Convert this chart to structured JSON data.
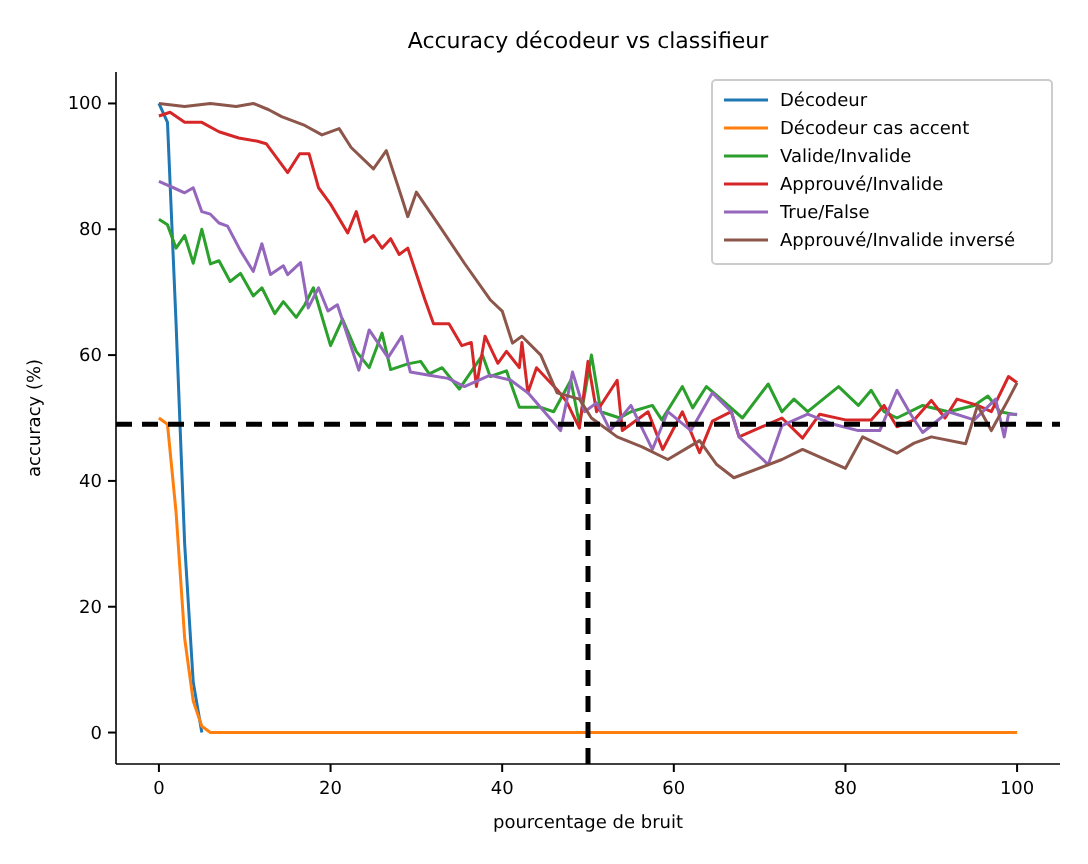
{
  "chart_data": {
    "type": "line",
    "title": "Accuracy décodeur vs classifieur",
    "xlabel": "pourcentage de bruit",
    "ylabel": "accuracy (%)",
    "xlim": [
      -5,
      105
    ],
    "ylim": [
      -5,
      105
    ],
    "xticks": [
      0,
      20,
      40,
      60,
      80,
      100
    ],
    "yticks": [
      0,
      20,
      40,
      60,
      80,
      100
    ],
    "grid": false,
    "legend": "top right",
    "marker": "none",
    "line_style": "solid",
    "series": [
      {
        "name": "Décodeur",
        "color": "#1f77b4",
        "x": [
          0,
          1,
          2,
          3,
          4,
          5
        ],
        "values": [
          100,
          97,
          65,
          30,
          8,
          0
        ]
      },
      {
        "name": "Décodeur cas accent",
        "color": "#ff7f0e",
        "x": [
          0,
          1,
          2,
          3,
          4,
          5,
          6,
          100
        ],
        "values": [
          50,
          49,
          35,
          15,
          5,
          1,
          0,
          0
        ]
      },
      {
        "name": "Valide/Invalide",
        "color": "#2ca02c",
        "x": [
          0,
          1,
          2,
          3,
          4,
          5,
          6,
          7,
          8.3,
          9.5,
          11,
          12,
          13.5,
          14.5,
          16,
          17,
          18,
          20,
          21.4,
          23,
          24.5,
          26,
          27,
          29,
          30.5,
          31.5,
          33,
          35,
          37.7,
          38.6,
          40.5,
          42,
          44.5,
          46,
          48,
          49,
          50.4,
          51.5,
          53.7,
          55,
          57.5,
          58.6,
          61,
          62.2,
          63.8,
          65,
          68,
          71,
          72.6,
          74,
          75.6,
          79.2,
          81.5,
          83,
          84.5,
          86,
          89,
          92,
          95,
          96.6,
          98,
          100
        ],
        "values": [
          81.6,
          80.7,
          77,
          79,
          74.6,
          80,
          74.5,
          75,
          71.7,
          73,
          69.4,
          70.7,
          66.6,
          68.5,
          66,
          68,
          70.7,
          61.5,
          65.7,
          60.6,
          58,
          63.5,
          57.7,
          58.6,
          59,
          57,
          58,
          54.6,
          60,
          56.6,
          57.5,
          51.7,
          51.7,
          51,
          56,
          49,
          60,
          51,
          50,
          51,
          52,
          49.7,
          55,
          51.6,
          55,
          53.6,
          50,
          55.4,
          51,
          53,
          51,
          55,
          52,
          54.4,
          51,
          50,
          52,
          51,
          52,
          53.5,
          51,
          50.5
        ]
      },
      {
        "name": "Approuvé/Invalide",
        "color": "#d62728",
        "x": [
          0,
          1.3,
          3,
          5,
          7,
          9.3,
          11.5,
          12.5,
          15,
          16.4,
          17.5,
          18.6,
          20,
          22,
          23,
          24,
          25,
          26,
          27,
          28,
          29,
          31,
          32,
          33.8,
          35.3,
          36.4,
          37,
          38,
          39.5,
          40.5,
          42,
          42.3,
          43,
          44,
          46.4,
          47.5,
          49,
          50,
          51,
          53.4,
          54,
          57,
          58.7,
          61,
          63,
          64.5,
          66.7,
          67.6,
          72.6,
          75,
          77,
          80,
          83,
          84.5,
          86,
          88,
          90,
          91.6,
          93,
          95.4,
          97,
          99,
          100
        ],
        "values": [
          98,
          98.6,
          97,
          97,
          95.5,
          94.5,
          94,
          93.6,
          89,
          92,
          92,
          86.6,
          84,
          79.4,
          82.8,
          78,
          79,
          77,
          78.5,
          76,
          77,
          68.8,
          65,
          65,
          61.5,
          62,
          55,
          63,
          58.7,
          60.6,
          58,
          62,
          54,
          58,
          54.5,
          52.6,
          48.4,
          59,
          51,
          56,
          48,
          51,
          45,
          51,
          44.5,
          49.5,
          51,
          47,
          50,
          46.8,
          50.6,
          49.7,
          49.7,
          52,
          48.6,
          49.7,
          52.8,
          50,
          53,
          52,
          51,
          56.6,
          55.6
        ]
      },
      {
        "name": "True/False",
        "color": "#9467bd",
        "x": [
          0,
          1.7,
          3,
          4,
          5,
          6,
          7,
          8,
          9.5,
          11,
          12,
          13,
          14.5,
          15,
          16.5,
          17.4,
          18.6,
          19.7,
          20.8,
          22,
          23.3,
          24.5,
          26.7,
          28.3,
          29.3,
          31.5,
          33.7,
          35.6,
          38.6,
          41,
          43,
          46.8,
          48.2,
          49.6,
          51,
          52.6,
          55,
          57.5,
          59.3,
          62,
          64.5,
          66.7,
          67.6,
          71,
          72.6,
          75.6,
          78.6,
          81.5,
          84,
          86,
          87.6,
          89,
          92,
          95,
          97.5,
          98.5,
          99,
          100
        ],
        "values": [
          87.6,
          86.6,
          85.8,
          86.6,
          82.8,
          82.4,
          81,
          80.5,
          76.6,
          73.3,
          77.7,
          72.8,
          74.2,
          72.8,
          74.7,
          67.5,
          70.7,
          67,
          68,
          63,
          57.6,
          64,
          59.6,
          63,
          57.3,
          56.8,
          56.3,
          55,
          56.8,
          56,
          54,
          48,
          57.3,
          51,
          52.4,
          48,
          52,
          45,
          51,
          48,
          54,
          51,
          47,
          42.6,
          48.8,
          50.6,
          49,
          48,
          48,
          54.4,
          50.6,
          47.7,
          51,
          49.7,
          53,
          47,
          50.6,
          50.6
        ]
      },
      {
        "name": "Approuvé/Invalide inversé",
        "color": "#8c564b",
        "x": [
          0,
          3,
          6,
          9,
          11,
          12.8,
          14.3,
          17,
          19,
          21,
          22.4,
          25,
          26.5,
          28.3,
          29,
          30,
          32.7,
          35.6,
          38.6,
          40,
          41.2,
          42.3,
          44.5,
          46.4,
          49,
          50.4,
          53.4,
          56.3,
          59.3,
          63,
          65,
          67,
          72.6,
          75,
          80,
          82,
          86,
          88,
          90,
          94,
          95.4,
          97,
          99,
          100
        ],
        "values": [
          100,
          99.5,
          100,
          99.5,
          100,
          99,
          97.9,
          96.5,
          95,
          96,
          93,
          89.6,
          92.5,
          85,
          82,
          85.9,
          80.5,
          74.6,
          68.8,
          67,
          61.9,
          63,
          60,
          54,
          53,
          50,
          47,
          45.4,
          43.4,
          46.4,
          42.6,
          40.5,
          43.4,
          45,
          42,
          47,
          44.4,
          46,
          47,
          45.9,
          52,
          48,
          53,
          55.6
        ]
      }
    ],
    "ref_lines": [
      {
        "axis": "y",
        "value": 49,
        "color": "#000000",
        "line_style": "dashed"
      },
      {
        "axis": "x",
        "value": 50,
        "color": "#000000",
        "line_style": "dashed"
      }
    ]
  }
}
